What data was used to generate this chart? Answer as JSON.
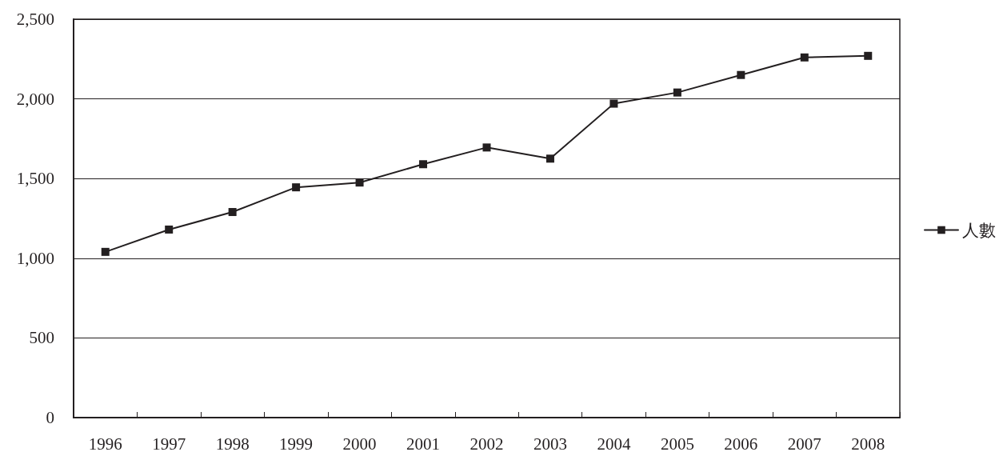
{
  "chart_data": {
    "type": "line",
    "categories": [
      "1996",
      "1997",
      "1998",
      "1999",
      "2000",
      "2001",
      "2002",
      "2003",
      "2004",
      "2005",
      "2006",
      "2007",
      "2008"
    ],
    "series": [
      {
        "name": "人數",
        "color": "#231f20",
        "values": [
          1040,
          1180,
          1290,
          1445,
          1475,
          1590,
          1695,
          1625,
          1970,
          2040,
          2150,
          2260,
          2270
        ]
      }
    ],
    "ylim": [
      0,
      2500
    ],
    "yticks": [
      0,
      500,
      {
        "value": 1000,
        "label": "1,000"
      },
      {
        "value": 1500,
        "label": "1,500"
      },
      {
        "value": 2000,
        "label": "2,000"
      },
      {
        "value": 2500,
        "label": "2,500"
      }
    ],
    "grid": "y",
    "legend": "right",
    "marker": "square",
    "line_style": "solid"
  }
}
